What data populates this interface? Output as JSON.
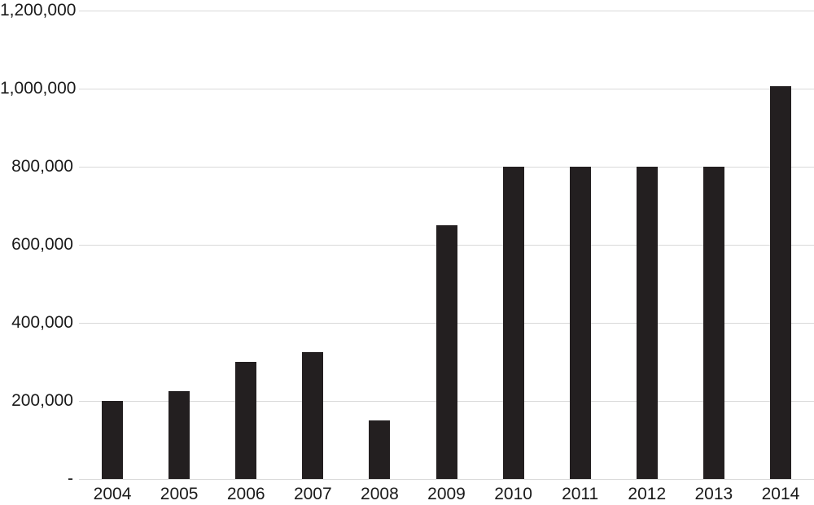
{
  "chart_data": {
    "type": "bar",
    "title": "",
    "xlabel": "",
    "ylabel": "",
    "categories": [
      "2004",
      "2005",
      "2006",
      "2007",
      "2008",
      "2009",
      "2010",
      "2011",
      "2012",
      "2013",
      "2014"
    ],
    "values": [
      200000,
      225000,
      300000,
      325000,
      150000,
      650000,
      800000,
      800000,
      800000,
      800000,
      1007000
    ],
    "ylim": [
      0,
      1200000
    ],
    "yticks": [
      {
        "value": 1200000,
        "label": "1,200,000"
      },
      {
        "value": 1000000,
        "label": "1,000,000"
      },
      {
        "value": 800000,
        "label": "800,000"
      },
      {
        "value": 600000,
        "label": "600,000"
      },
      {
        "value": 400000,
        "label": "400,000"
      },
      {
        "value": 200000,
        "label": "200,000"
      },
      {
        "value": 0,
        "label": "-"
      }
    ],
    "grid": true,
    "legend": false,
    "bar_color": "#231f20",
    "gridline_color": "#d9d9d9",
    "text_color": "#1a1a1a"
  }
}
